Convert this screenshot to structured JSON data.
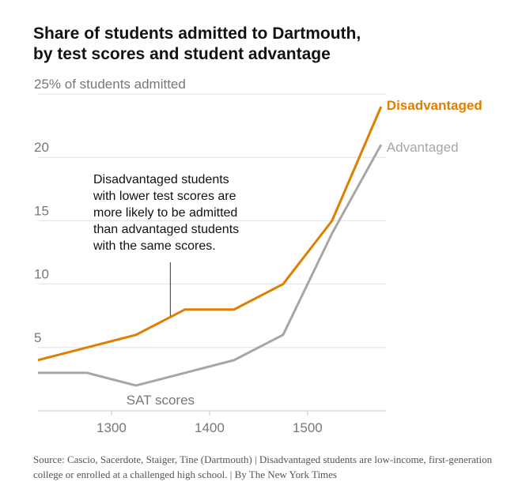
{
  "title_lines": [
    "Share of students admitted to Dartmouth,",
    "by test scores and student advantage"
  ],
  "source": "Source: Cascio, Sacerdote, Staiger, Tine (Dartmouth) | Disadvantaged students are low-income, first-generation college or enrolled at a challenged high school. | By The New York Times",
  "chart_data": {
    "type": "line",
    "title": "Share of students admitted to Dartmouth, by test scores and student advantage",
    "xlabel": "SAT scores",
    "ylabel": "25% of students admitted",
    "xlim": [
      1225,
      1580
    ],
    "ylim": [
      0,
      25
    ],
    "x_ticks": [
      1300,
      1400,
      1500
    ],
    "x_tick_labels": [
      "1300",
      "1400",
      "1500"
    ],
    "y_ticks": [
      5,
      10,
      15,
      20,
      25
    ],
    "y_tick_labels": [
      "5",
      "10",
      "15",
      "20",
      "25% of students admitted"
    ],
    "grid": true,
    "x": [
      1225,
      1275,
      1325,
      1375,
      1425,
      1475,
      1525,
      1575
    ],
    "series": [
      {
        "name": "Disadvantaged",
        "color": "#e07e00",
        "values": [
          4,
          5,
          6,
          8,
          8,
          10,
          15,
          24
        ]
      },
      {
        "name": "Advantaged",
        "color": "#a6a6a6",
        "values": [
          3,
          3,
          2,
          3,
          4,
          6,
          14,
          21
        ]
      }
    ],
    "annotation": {
      "lines": [
        "Disadvantaged students",
        "with lower test scores are",
        "more likely to be admitted",
        "than advantaged students",
        "with the same scores."
      ],
      "x": 1360,
      "y": 7.5
    }
  }
}
